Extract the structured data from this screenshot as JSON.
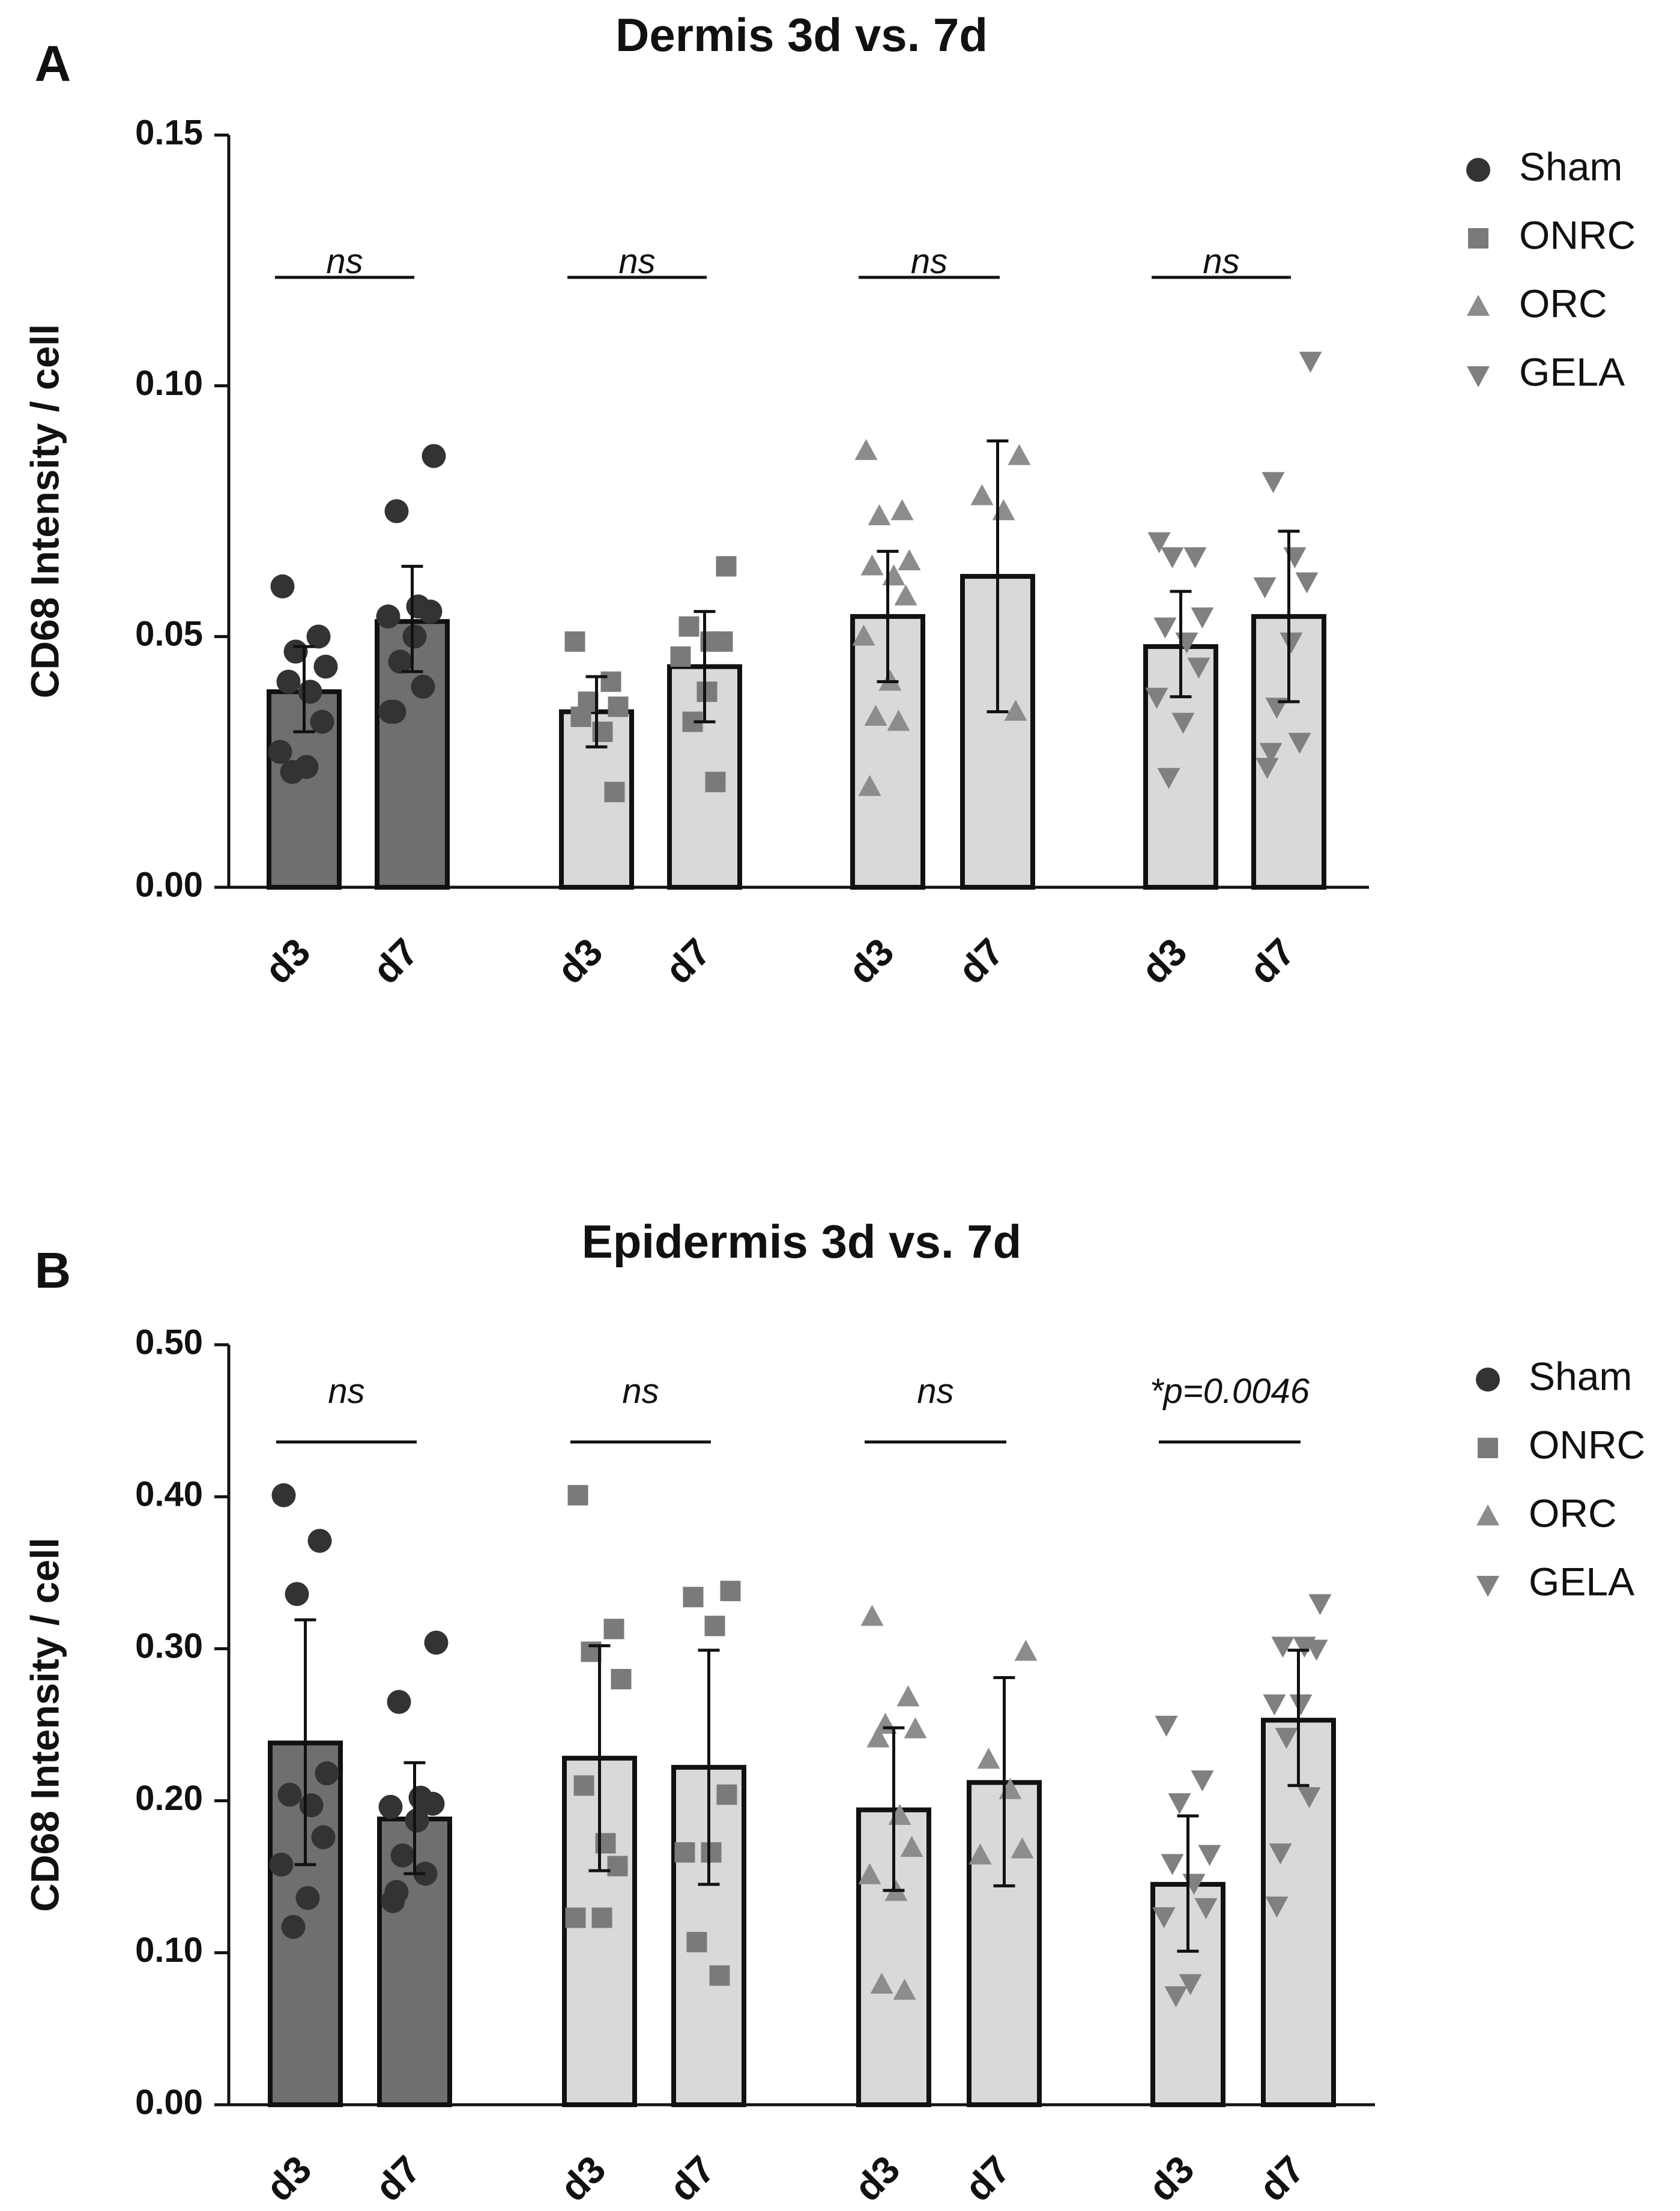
{
  "colors": {
    "sham_bar": "#6f6f6f",
    "other_bar": "#d9d9d9",
    "sham_point": "#333333",
    "onrc_point": "#7a7a7a",
    "orc_point": "#8c8c8c",
    "gela_point": "#808080",
    "axis": "#111111"
  },
  "chart_data": [
    {
      "panel": "A",
      "type": "bar",
      "title": "Dermis 3d vs. 7d",
      "ylabel": "CD68 Intensity / cell",
      "xlabel": "",
      "ylim": [
        0,
        0.15
      ],
      "yticks": [
        0.0,
        0.05,
        0.1,
        0.15
      ],
      "ytick_labels": [
        "0.00",
        "0.05",
        "0.10",
        "0.15"
      ],
      "legend": [
        "Sham",
        "ONRC",
        "ORC",
        "GELA"
      ],
      "legend_position": "top-right",
      "groups": [
        {
          "name": "Sham",
          "marker": "circle",
          "bars": [
            {
              "label": "d3",
              "mean": 0.039,
              "err_low": 0.031,
              "err_high": 0.048,
              "points": [
                0.06,
                0.05,
                0.047,
                0.044,
                0.041,
                0.039,
                0.033,
                0.027,
                0.024,
                0.023
              ]
            },
            {
              "label": "d7",
              "mean": 0.053,
              "err_low": 0.043,
              "err_high": 0.064,
              "points": [
                0.086,
                0.075,
                0.056,
                0.055,
                0.054,
                0.05,
                0.045,
                0.04,
                0.035,
                0.035
              ]
            }
          ],
          "significance": "ns"
        },
        {
          "name": "ONRC",
          "marker": "square",
          "bars": [
            {
              "label": "d3",
              "mean": 0.035,
              "err_low": 0.028,
              "err_high": 0.042,
              "points": [
                0.049,
                0.041,
                0.037,
                0.036,
                0.034,
                0.031,
                0.019
              ]
            },
            {
              "label": "d7",
              "mean": 0.044,
              "err_low": 0.033,
              "err_high": 0.055,
              "points": [
                0.064,
                0.052,
                0.049,
                0.049,
                0.046,
                0.039,
                0.033,
                0.021
              ]
            }
          ],
          "significance": "ns"
        },
        {
          "name": "ORC",
          "marker": "triangle-up",
          "bars": [
            {
              "label": "d3",
              "mean": 0.054,
              "err_low": 0.041,
              "err_high": 0.067,
              "points": [
                0.087,
                0.075,
                0.074,
                0.065,
                0.064,
                0.062,
                0.058,
                0.05,
                0.041,
                0.034,
                0.033,
                0.02
              ]
            },
            {
              "label": "d7",
              "mean": 0.062,
              "err_low": 0.035,
              "err_high": 0.089,
              "points": [
                0.086,
                0.078,
                0.075,
                0.035
              ]
            }
          ],
          "significance": "ns"
        },
        {
          "name": "GELA",
          "marker": "triangle-down",
          "bars": [
            {
              "label": "d3",
              "mean": 0.048,
              "err_low": 0.038,
              "err_high": 0.059,
              "points": [
                0.069,
                0.066,
                0.066,
                0.054,
                0.052,
                0.049,
                0.044,
                0.038,
                0.033,
                0.022
              ]
            },
            {
              "label": "d7",
              "mean": 0.054,
              "err_low": 0.037,
              "err_high": 0.071,
              "points": [
                0.105,
                0.081,
                0.066,
                0.061,
                0.06,
                0.049,
                0.036,
                0.029,
                0.027,
                0.024
              ]
            }
          ],
          "significance": "ns"
        }
      ]
    },
    {
      "panel": "B",
      "type": "bar",
      "title": "Epidermis 3d vs. 7d",
      "ylabel": "CD68 Intensity / cell",
      "xlabel": "",
      "ylim": [
        0,
        0.5
      ],
      "yticks": [
        0.0,
        0.1,
        0.2,
        0.3,
        0.4,
        0.5
      ],
      "ytick_labels": [
        "0.00",
        "0.10",
        "0.20",
        "0.30",
        "0.40",
        "0.50"
      ],
      "legend": [
        "Sham",
        "ONRC",
        "ORC",
        "GELA"
      ],
      "legend_position": "top-right",
      "groups": [
        {
          "name": "Sham",
          "marker": "circle",
          "bars": [
            {
              "label": "d3",
              "mean": 0.238,
              "err_low": 0.158,
              "err_high": 0.319,
              "points": [
                0.401,
                0.371,
                0.336,
                0.218,
                0.204,
                0.197,
                0.176,
                0.158,
                0.136,
                0.117
              ]
            },
            {
              "label": "d7",
              "mean": 0.188,
              "err_low": 0.152,
              "err_high": 0.225,
              "points": [
                0.304,
                0.265,
                0.202,
                0.198,
                0.196,
                0.187,
                0.164,
                0.152,
                0.14,
                0.134
              ]
            }
          ],
          "significance": "ns"
        },
        {
          "name": "ONRC",
          "marker": "square",
          "bars": [
            {
              "label": "d3",
              "mean": 0.228,
              "err_low": 0.154,
              "err_high": 0.302,
              "points": [
                0.401,
                0.313,
                0.298,
                0.28,
                0.21,
                0.172,
                0.157,
                0.123,
                0.123
              ]
            },
            {
              "label": "d7",
              "mean": 0.222,
              "err_low": 0.145,
              "err_high": 0.299,
              "points": [
                0.338,
                0.334,
                0.315,
                0.204,
                0.166,
                0.166,
                0.107,
                0.085
              ]
            }
          ],
          "significance": "ns"
        },
        {
          "name": "ORC",
          "marker": "triangle-up",
          "bars": [
            {
              "label": "d3",
              "mean": 0.194,
              "err_low": 0.141,
              "err_high": 0.248,
              "points": [
                0.321,
                0.268,
                0.25,
                0.247,
                0.241,
                0.19,
                0.169,
                0.151,
                0.14,
                0.079,
                0.075
              ]
            },
            {
              "label": "d7",
              "mean": 0.212,
              "err_low": 0.144,
              "err_high": 0.281,
              "points": [
                0.298,
                0.227,
                0.207,
                0.168,
                0.164
              ]
            }
          ],
          "significance": "ns"
        },
        {
          "name": "GELA",
          "marker": "triangle-down",
          "bars": [
            {
              "label": "d3",
              "mean": 0.145,
              "err_low": 0.101,
              "err_high": 0.19,
              "points": [
                0.25,
                0.214,
                0.199,
                0.165,
                0.159,
                0.146,
                0.13,
                0.124,
                0.08,
                0.072
              ]
            },
            {
              "label": "d7",
              "mean": 0.253,
              "err_low": 0.21,
              "err_high": 0.299,
              "points": [
                0.33,
                0.302,
                0.302,
                0.3,
                0.264,
                0.264,
                0.242,
                0.203,
                0.166,
                0.131
              ]
            }
          ],
          "significance": "*p=0.0046"
        }
      ]
    }
  ]
}
